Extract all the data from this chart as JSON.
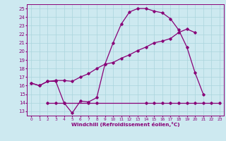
{
  "title": "",
  "xlabel": "Windchill (Refroidissement éolien,°C)",
  "bg_color": "#cde9f0",
  "line_color": "#880077",
  "grid_color": "#aad4dd",
  "xlim": [
    -0.5,
    23.5
  ],
  "ylim": [
    12.5,
    25.5
  ],
  "yticks": [
    13,
    14,
    15,
    16,
    17,
    18,
    19,
    20,
    21,
    22,
    23,
    24,
    25
  ],
  "xticks": [
    0,
    1,
    2,
    3,
    4,
    5,
    6,
    7,
    8,
    9,
    10,
    11,
    12,
    13,
    14,
    15,
    16,
    17,
    18,
    19,
    20,
    21,
    22,
    23
  ],
  "curve1_x": [
    0,
    1,
    2,
    3,
    4,
    5,
    6,
    7,
    8,
    9,
    10,
    11,
    12,
    13,
    14,
    15,
    16,
    17,
    18,
    19,
    20,
    21
  ],
  "curve1_y": [
    16.3,
    16.0,
    16.5,
    16.5,
    14.0,
    12.8,
    14.2,
    14.1,
    14.6,
    18.5,
    21.0,
    23.2,
    24.6,
    25.0,
    25.0,
    24.7,
    24.5,
    23.8,
    22.5,
    20.5,
    17.5,
    15.0
  ],
  "curve2_x": [
    0,
    1,
    2,
    3,
    4,
    5,
    6,
    7,
    8,
    9,
    10,
    11,
    12,
    13,
    14,
    15,
    16,
    17,
    18,
    19,
    20
  ],
  "curve2_y": [
    16.3,
    16.0,
    16.5,
    16.6,
    16.6,
    16.5,
    17.0,
    17.4,
    18.0,
    18.5,
    18.7,
    19.2,
    19.6,
    20.1,
    20.5,
    21.0,
    21.2,
    21.5,
    22.2,
    22.6,
    22.2
  ],
  "curve3_x": [
    2,
    3,
    4,
    7,
    8,
    14,
    15,
    16,
    17,
    18,
    19,
    20,
    21,
    22,
    23
  ],
  "curve3_y": [
    14.0,
    14.0,
    14.0,
    14.0,
    14.0,
    14.0,
    14.0,
    14.0,
    14.0,
    14.0,
    14.0,
    14.0,
    14.0,
    14.0,
    14.0
  ]
}
